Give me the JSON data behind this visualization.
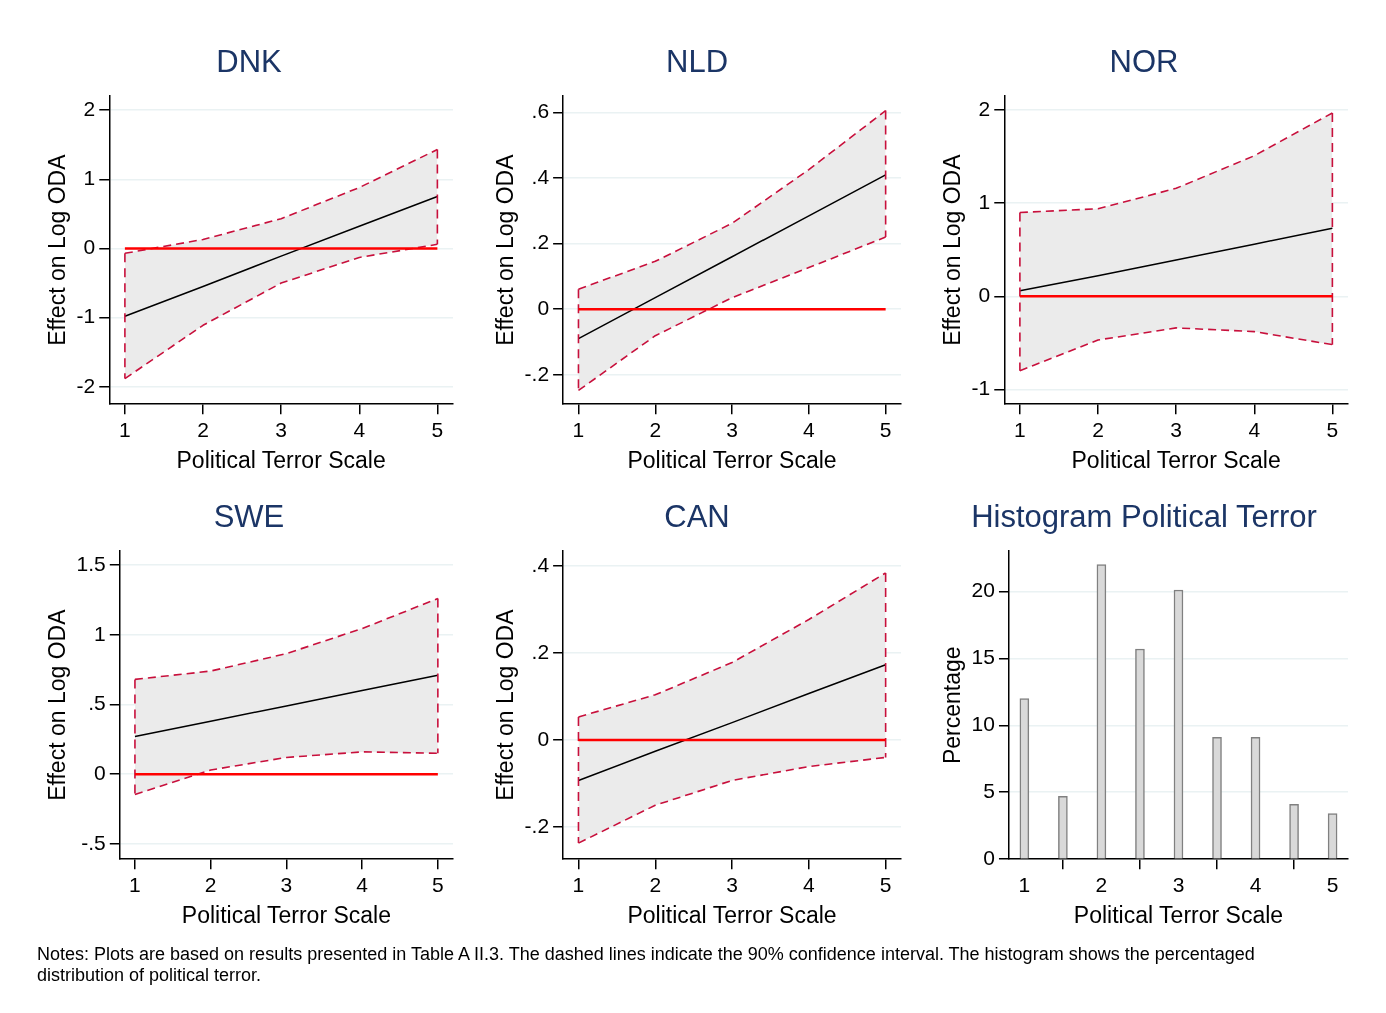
{
  "chart_data": [
    {
      "type": "line",
      "title": "DNK",
      "xlabel": "Political Terror Scale",
      "ylabel": "Effect on Log ODA",
      "x": [
        1,
        2,
        3,
        4,
        5
      ],
      "xlim": [
        0.8,
        5.2
      ],
      "xticks": [
        1,
        2,
        3,
        4,
        5
      ],
      "ylim": [
        -2.25,
        2.2
      ],
      "yticks": [
        -2,
        -1,
        0,
        1,
        2
      ],
      "grid": "y",
      "series": [
        {
          "color": "#000000",
          "values": [
            -0.98,
            -0.55,
            -0.11,
            0.32,
            0.75
          ],
          "errors": [
            [
              -1.88,
              -0.07
            ],
            null,
            null,
            null,
            [
              0.06,
              1.43
            ]
          ],
          "lower": [
            -1.88,
            -1.11,
            -0.5,
            -0.13,
            0.06
          ],
          "upper": [
            -0.07,
            0.13,
            0.43,
            0.88,
            1.43
          ]
        },
        {
          "color": "#c8103c",
          "line_style": "dashed",
          "values": [
            -0.07,
            0.13,
            0.43,
            0.88,
            1.43
          ]
        },
        {
          "color": "#c8103c",
          "line_style": "dashed",
          "values": [
            -1.88,
            -1.11,
            -0.5,
            -0.13,
            0.06
          ]
        }
      ],
      "ref_lines": [
        {
          "axis": "y",
          "value": 0,
          "color": "#ff0000"
        }
      ]
    },
    {
      "type": "line",
      "title": "NLD",
      "xlabel": "Political Terror Scale",
      "ylabel": "Effect on Log ODA",
      "x": [
        1,
        2,
        3,
        4,
        5
      ],
      "xlim": [
        0.8,
        5.2
      ],
      "xticks": [
        1,
        2,
        3,
        4,
        5
      ],
      "ylim": [
        -0.29,
        0.65
      ],
      "yticks": [
        {
          "value": -0.2,
          "label": "-.2"
        },
        0,
        {
          "value": 0.2,
          "label": ".2"
        },
        {
          "value": 0.4,
          "label": ".4"
        },
        {
          "value": 0.6,
          "label": ".6"
        }
      ],
      "grid": "y",
      "series": [
        {
          "color": "#000000",
          "values": [
            -0.09,
            0.035,
            0.16,
            0.285,
            0.41
          ],
          "errors": [
            [
              -0.248,
              0.061
            ],
            null,
            null,
            null,
            [
              0.22,
              0.606
            ]
          ],
          "lower": [
            -0.248,
            -0.081,
            0.035,
            0.127,
            0.22
          ],
          "upper": [
            0.061,
            0.146,
            0.262,
            0.426,
            0.606
          ]
        },
        {
          "color": "#c8103c",
          "line_style": "dashed",
          "values": [
            0.061,
            0.146,
            0.262,
            0.426,
            0.606
          ]
        },
        {
          "color": "#c8103c",
          "line_style": "dashed",
          "values": [
            -0.248,
            -0.081,
            0.035,
            0.127,
            0.22
          ]
        }
      ],
      "ref_lines": [
        {
          "axis": "y",
          "value": 0,
          "color": "#ff0000"
        }
      ]
    },
    {
      "type": "line",
      "title": "NOR",
      "xlabel": "Political Terror Scale",
      "ylabel": "Effect on Log ODA",
      "x": [
        1,
        2,
        3,
        4,
        5
      ],
      "xlim": [
        0.8,
        5.2
      ],
      "xticks": [
        1,
        2,
        3,
        4,
        5
      ],
      "ylim": [
        -1.16,
        2.15
      ],
      "yticks": [
        -1,
        0,
        1,
        2
      ],
      "grid": "y",
      "series": [
        {
          "color": "#000000",
          "values": [
            0.06,
            0.22,
            0.39,
            0.56,
            0.73
          ],
          "errors": [
            [
              -0.8,
              0.9
            ],
            null,
            null,
            null,
            [
              -0.52,
              1.97
            ]
          ],
          "lower": [
            -0.8,
            -0.47,
            -0.34,
            -0.38,
            -0.52
          ],
          "upper": [
            0.9,
            0.94,
            1.16,
            1.51,
            1.97
          ]
        },
        {
          "color": "#c8103c",
          "line_style": "dashed",
          "values": [
            0.9,
            0.94,
            1.16,
            1.51,
            1.97
          ]
        },
        {
          "color": "#c8103c",
          "line_style": "dashed",
          "values": [
            -0.8,
            -0.47,
            -0.34,
            -0.38,
            -0.52
          ]
        }
      ],
      "ref_lines": [
        {
          "axis": "y",
          "value": 0,
          "color": "#ff0000"
        }
      ]
    },
    {
      "type": "line",
      "title": "SWE",
      "xlabel": "Political Terror Scale",
      "ylabel": "Effect on Log ODA",
      "x": [
        1,
        2,
        3,
        4,
        5
      ],
      "xlim": [
        0.8,
        5.2
      ],
      "xticks": [
        1,
        2,
        3,
        4,
        5
      ],
      "ylim": [
        -0.61,
        1.6
      ],
      "yticks": [
        {
          "value": -0.5,
          "label": "-.5"
        },
        0,
        {
          "value": 0.5,
          "label": ".5"
        },
        1,
        1.5
      ],
      "grid": "y",
      "series": [
        {
          "color": "#000000",
          "values": [
            0.27,
            0.38,
            0.49,
            0.6,
            0.71
          ],
          "errors": [
            [
              -0.145,
              0.68
            ],
            null,
            null,
            null,
            [
              0.15,
              1.26
            ]
          ],
          "lower": [
            -0.145,
            0.03,
            0.12,
            0.16,
            0.15
          ],
          "upper": [
            0.68,
            0.74,
            0.865,
            1.045,
            1.26
          ]
        },
        {
          "color": "#c8103c",
          "line_style": "dashed",
          "values": [
            0.68,
            0.74,
            0.865,
            1.045,
            1.26
          ]
        },
        {
          "color": "#c8103c",
          "line_style": "dashed",
          "values": [
            -0.145,
            0.03,
            0.12,
            0.16,
            0.15
          ]
        }
      ],
      "ref_lines": [
        {
          "axis": "y",
          "value": 0,
          "color": "#ff0000"
        }
      ]
    },
    {
      "type": "line",
      "title": "CAN",
      "xlabel": "Political Terror Scale",
      "ylabel": "Effect on Log ODA",
      "x": [
        1,
        2,
        3,
        4,
        5
      ],
      "xlim": [
        0.8,
        5.2
      ],
      "xticks": [
        1,
        2,
        3,
        4,
        5
      ],
      "ylim": [
        -0.274,
        0.434
      ],
      "yticks": [
        {
          "value": -0.2,
          "label": "-.2"
        },
        0,
        {
          "value": 0.2,
          "label": ".2"
        },
        {
          "value": 0.4,
          "label": ".4"
        }
      ],
      "grid": "y",
      "series": [
        {
          "color": "#000000",
          "values": [
            -0.093,
            -0.026,
            0.04,
            0.107,
            0.173
          ],
          "errors": [
            [
              -0.237,
              0.053
            ],
            null,
            null,
            null,
            [
              -0.04,
              0.384
            ]
          ],
          "lower": [
            -0.237,
            -0.15,
            -0.093,
            -0.061,
            -0.04
          ],
          "upper": [
            0.053,
            0.104,
            0.178,
            0.277,
            0.384
          ]
        },
        {
          "color": "#c8103c",
          "line_style": "dashed",
          "values": [
            0.053,
            0.104,
            0.178,
            0.277,
            0.384
          ]
        },
        {
          "color": "#c8103c",
          "line_style": "dashed",
          "values": [
            -0.237,
            -0.15,
            -0.093,
            -0.061,
            -0.04
          ]
        }
      ],
      "ref_lines": [
        {
          "axis": "y",
          "value": 0,
          "color": "#ff0000"
        }
      ]
    },
    {
      "type": "bar",
      "title": "Histogram Political Terror",
      "xlabel": "Political Terror Scale",
      "ylabel": "Percentage",
      "x": [
        1,
        1.5,
        2,
        2.5,
        3,
        3.5,
        4,
        4.5,
        5
      ],
      "values": [
        12.0,
        4.7,
        22.0,
        15.7,
        20.1,
        9.1,
        9.1,
        4.1,
        3.4
      ],
      "color": "#d9d9d9",
      "xlim": [
        0.8,
        5.2
      ],
      "xticks": [
        1,
        2,
        3,
        4,
        5
      ],
      "ylim": [
        0,
        23
      ],
      "yticks": [
        0,
        5,
        10,
        15,
        20
      ],
      "grid": "y",
      "annotations": [
        "Notes: Plots are based on results presented in Table A II.3. The dashed lines indicate the 90% confidence interval. The histogram shows the percentaged distribution of political terror."
      ]
    }
  ]
}
